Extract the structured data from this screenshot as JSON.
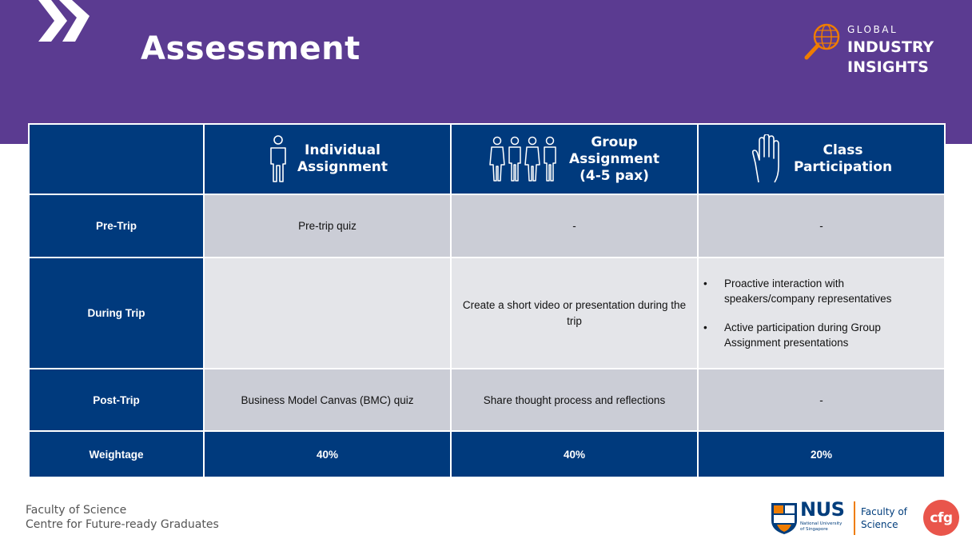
{
  "slide": {
    "title": "Assessment"
  },
  "brand": {
    "global": "GLOBAL",
    "industry": "INDUSTRY",
    "insights": "INSIGHTS",
    "icon": "globe-magnifier-icon",
    "accent": "#ef7c00",
    "banner_color": "#5b3b91",
    "table_navy": "#003a7d"
  },
  "table": {
    "columns": [
      {
        "label_lines": [
          "Individual",
          "Assignment"
        ],
        "icon": "person-icon"
      },
      {
        "label_lines": [
          "Group",
          "Assignment",
          "(4-5 pax)"
        ],
        "icon": "group-icon"
      },
      {
        "label_lines": [
          "Class",
          "Participation"
        ],
        "icon": "raised-hand-icon"
      }
    ],
    "rows": [
      {
        "label": "Pre-Trip",
        "cells": [
          "Pre-trip quiz",
          "-",
          "-"
        ]
      },
      {
        "label": "During Trip",
        "cells": [
          "",
          "Create a short video or presentation during the trip",
          ""
        ],
        "bullets": [
          "Proactive interaction with speakers/company representatives",
          "Active participation during Group Assignment presentations"
        ]
      },
      {
        "label": "Post-Trip",
        "cells": [
          "Business Model Canvas (BMC) quiz",
          "Share thought process and reflections",
          "-"
        ]
      },
      {
        "label": "Weightage",
        "cells": [
          "40%",
          "40%",
          "20%"
        ]
      }
    ]
  },
  "footer": {
    "line1": "Faculty of Science",
    "line2": "Centre for Future-ready Graduates",
    "nus": "NUS",
    "nus_sub_line1": "National University",
    "nus_sub_line2": "of Singapore",
    "fos_line1": "Faculty of",
    "fos_line2": "Science",
    "cfg": "cfg"
  }
}
